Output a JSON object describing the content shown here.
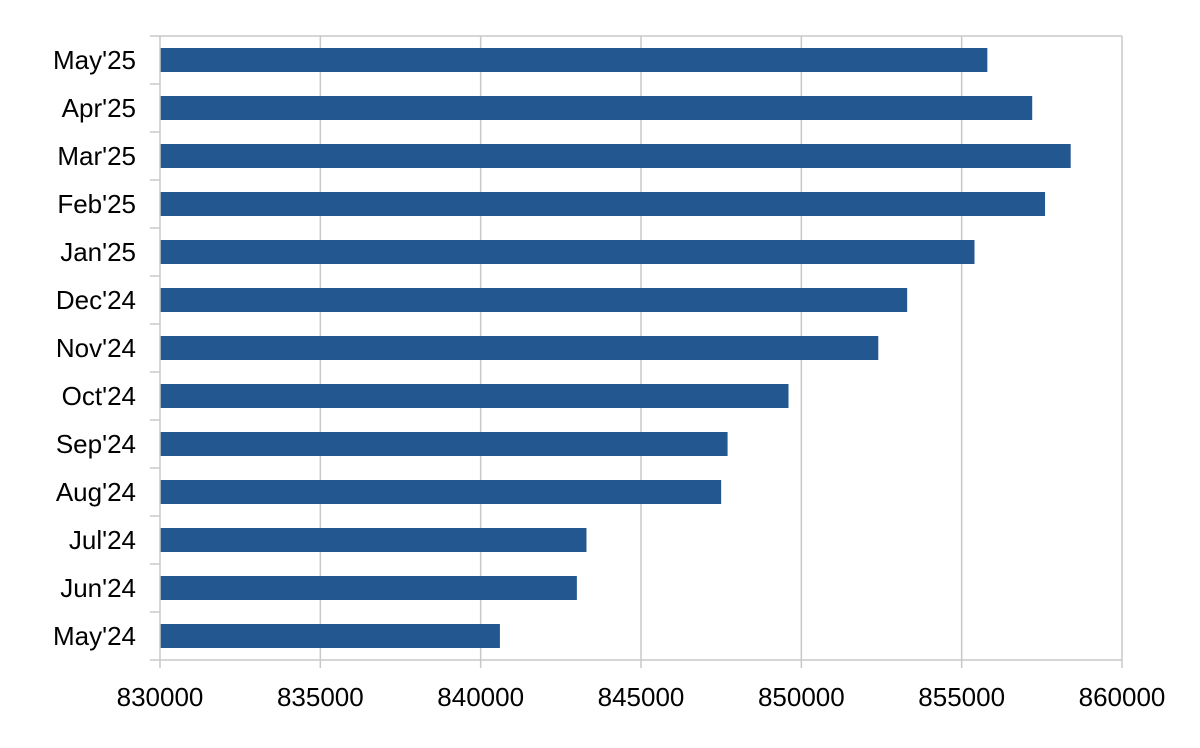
{
  "chart_data": {
    "type": "bar",
    "orientation": "horizontal",
    "categories": [
      "May'24",
      "Jun'24",
      "Jul'24",
      "Aug'24",
      "Sep'24",
      "Oct'24",
      "Nov'24",
      "Dec'24",
      "Jan'25",
      "Feb'25",
      "Mar'25",
      "Apr'25",
      "May'25"
    ],
    "values": [
      840600,
      843000,
      843300,
      847500,
      847700,
      849600,
      852400,
      853300,
      855400,
      857600,
      858400,
      857200,
      855800
    ],
    "xlim": [
      830000,
      860000
    ],
    "xticks": [
      830000,
      835000,
      840000,
      845000,
      850000,
      855000,
      860000
    ],
    "xtick_labels": [
      "830000",
      "835000",
      "840000",
      "845000",
      "850000",
      "855000",
      "860000"
    ],
    "grid": "vertical",
    "legend": "none",
    "bar_color": "#22578f",
    "grid_color": "#c8c8c8"
  }
}
